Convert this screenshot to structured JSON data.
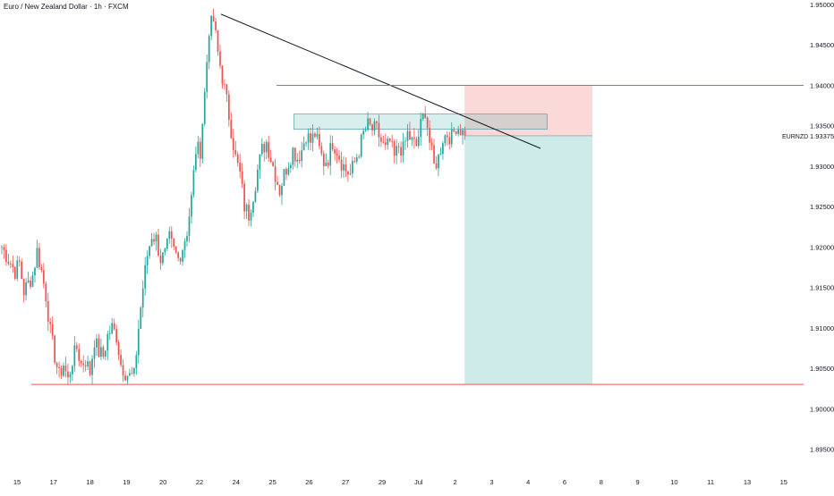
{
  "chart_data": {
    "type": "candlestick",
    "title": "Euro / New Zealand Dollar · 1h · FXCM",
    "symbol_label": "EURNZD",
    "last_price_label": "1.93375",
    "last_price": 1.93375,
    "y_axis": {
      "range": [
        1.8945,
        1.95
      ],
      "tick_labels": [
        "1.95000",
        "1.94500",
        "1.94000",
        "1.93500",
        "1.93000",
        "1.92500",
        "1.92000",
        "1.91500",
        "1.91000",
        "1.90500",
        "1.90000",
        "1.89500"
      ],
      "tick_values": [
        1.95,
        1.945,
        1.94,
        1.935,
        1.93,
        1.925,
        1.92,
        1.915,
        1.91,
        1.905,
        1.9,
        1.895
      ]
    },
    "x_axis": {
      "tick_labels": [
        "15",
        "17",
        "18",
        "19",
        "20",
        "22",
        "24",
        "25",
        "26",
        "27",
        "29",
        "Jul",
        "2",
        "3",
        "4",
        "6",
        "8",
        "9",
        "10",
        "11",
        "13",
        "15"
      ],
      "tick_positions": [
        0,
        4,
        8,
        12,
        16,
        20,
        24,
        28,
        32,
        36,
        40,
        44,
        48,
        52,
        56,
        60,
        64,
        68,
        72,
        76,
        80,
        84
      ]
    },
    "series": [
      {
        "name": "",
        "type": "ohlc_path",
        "colors": {
          "up": "#26a69a",
          "down": "#ef5350"
        },
        "key_points": [
          [
            0,
            1.92
          ],
          [
            3,
            1.917
          ],
          [
            4,
            1.918
          ],
          [
            5,
            1.9145
          ],
          [
            7,
            1.9165
          ],
          [
            8,
            1.9195
          ],
          [
            9,
            1.917
          ],
          [
            10,
            1.914
          ],
          [
            11,
            1.9095
          ],
          [
            12,
            1.9065
          ],
          [
            13,
            1.904
          ],
          [
            14,
            1.9055
          ],
          [
            15,
            1.9035
          ],
          [
            16,
            1.906
          ],
          [
            17,
            1.9075
          ],
          [
            18,
            1.9055
          ],
          [
            19,
            1.906
          ],
          [
            20,
            1.9045
          ],
          [
            21,
            1.9085
          ],
          [
            22,
            1.907
          ],
          [
            23,
            1.9065
          ],
          [
            24,
            1.909
          ],
          [
            25,
            1.91
          ],
          [
            26,
            1.909
          ],
          [
            27,
            1.9055
          ],
          [
            28,
            1.9045
          ],
          [
            29,
            1.904
          ],
          [
            30,
            1.904
          ],
          [
            31,
            1.91
          ],
          [
            32,
            1.915
          ],
          [
            33,
            1.919
          ],
          [
            34,
            1.9215
          ],
          [
            35,
            1.921
          ],
          [
            36,
            1.9185
          ],
          [
            37,
            1.919
          ],
          [
            38,
            1.921
          ],
          [
            39,
            1.9195
          ],
          [
            40,
            1.9185
          ],
          [
            41,
            1.92
          ],
          [
            42,
            1.922
          ],
          [
            43,
            1.926
          ],
          [
            44,
            1.932
          ],
          [
            45,
            1.932
          ],
          [
            46,
            1.939
          ],
          [
            47,
            1.947
          ],
          [
            48,
            1.948
          ],
          [
            49,
            1.944
          ],
          [
            50,
            1.941
          ],
          [
            51,
            1.938
          ],
          [
            52,
            1.9345
          ],
          [
            53,
            1.931
          ],
          [
            54,
            1.929
          ],
          [
            55,
            1.925
          ],
          [
            56,
            1.924
          ],
          [
            57,
            1.9265
          ],
          [
            58,
            1.9295
          ],
          [
            59,
            1.932
          ],
          [
            60,
            1.933
          ],
          [
            61,
            1.931
          ],
          [
            62,
            1.929
          ],
          [
            63,
            1.927
          ],
          [
            64,
            1.929
          ],
          [
            65,
            1.9305
          ],
          [
            66,
            1.932
          ],
          [
            67,
            1.931
          ],
          [
            68,
            1.932
          ],
          [
            69,
            1.934
          ],
          [
            70,
            1.933
          ],
          [
            71,
            1.934
          ],
          [
            72,
            1.932
          ],
          [
            73,
            1.9305
          ],
          [
            74,
            1.931
          ],
          [
            75,
            1.933
          ],
          [
            76,
            1.932
          ],
          [
            77,
            1.9305
          ],
          [
            78,
            1.9295
          ],
          [
            79,
            1.929
          ],
          [
            80,
            1.9305
          ],
          [
            81,
            1.932
          ],
          [
            82,
            1.934
          ],
          [
            83,
            1.935
          ],
          [
            84,
            1.9345
          ],
          [
            85,
            1.9345
          ],
          [
            86,
            1.933
          ],
          [
            87,
            1.932
          ],
          [
            88,
            1.933
          ],
          [
            89,
            1.931
          ],
          [
            90,
            1.9325
          ],
          [
            91,
            1.932
          ],
          [
            92,
            1.934
          ],
          [
            93,
            1.933
          ],
          [
            94,
            1.9325
          ],
          [
            95,
            1.935
          ],
          [
            96,
            1.937
          ],
          [
            97,
            1.933
          ],
          [
            98,
            1.93
          ],
          [
            99,
            1.931
          ],
          [
            100,
            1.9335
          ],
          [
            101,
            1.934
          ],
          [
            102,
            1.9335
          ],
          [
            103,
            1.935
          ],
          [
            104,
            1.9345
          ],
          [
            105,
            1.93375
          ]
        ]
      }
    ],
    "drawings": {
      "trendline": {
        "start": [
          48,
          1.9488
        ],
        "end": [
          118,
          1.9322
        ],
        "color": "#131722"
      },
      "resistance_line": {
        "start": [
          60,
          1.94
        ],
        "end": [
          176,
          1.94
        ],
        "color": "#ef5350"
      },
      "support_line": {
        "start": [
          7,
          1.903
        ],
        "end": [
          176,
          1.903
        ],
        "color": "#ef5350"
      },
      "entry_zone": {
        "x": [
          64,
          124
        ],
        "y": [
          1.935,
          1.936
        ],
        "color": "#26a69a"
      },
      "short_position": {
        "x": [
          102,
          130
        ],
        "entry": 1.93375,
        "stop": 1.94,
        "target": 1.903,
        "stop_color": "#ef5350",
        "target_color": "#26a69a"
      }
    }
  }
}
